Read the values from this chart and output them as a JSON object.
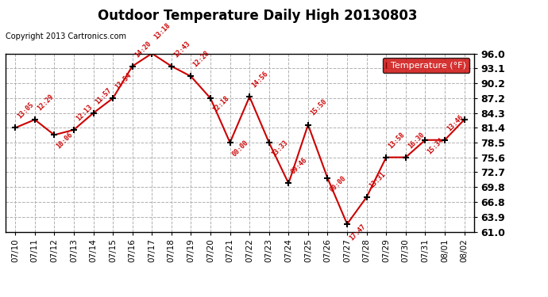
{
  "title": "Outdoor Temperature Daily High 20130803",
  "copyright": "Copyright 2013 Cartronics.com",
  "legend_label": "Temperature (°F)",
  "dates": [
    "07/10",
    "07/11",
    "07/12",
    "07/13",
    "07/14",
    "07/15",
    "07/16",
    "07/17",
    "07/18",
    "07/19",
    "07/20",
    "07/21",
    "07/22",
    "07/23",
    "07/24",
    "07/25",
    "07/26",
    "07/27",
    "07/28",
    "07/29",
    "07/30",
    "07/31",
    "08/01",
    "08/02"
  ],
  "temps": [
    81.4,
    83.0,
    80.0,
    81.0,
    84.3,
    87.2,
    93.5,
    96.0,
    93.5,
    91.5,
    87.2,
    78.5,
    87.5,
    78.5,
    70.5,
    82.0,
    71.5,
    62.5,
    67.8,
    75.6,
    75.6,
    79.0,
    79.0,
    83.0
  ],
  "time_labels": [
    "13:05",
    "12:29",
    "10:06",
    "12:13",
    "11:57",
    "13:54",
    "14:20",
    "13:18",
    "12:43",
    "12:28",
    "12:18",
    "00:00",
    "14:56",
    "13:33",
    "09:46",
    "15:50",
    "00:00",
    "17:47",
    "13:31",
    "13:58",
    "16:30",
    "15:34",
    "13:46",
    ""
  ],
  "ylim_min": 61.0,
  "ylim_max": 96.0,
  "ytick_vals": [
    61.0,
    63.9,
    66.8,
    69.8,
    72.7,
    75.6,
    78.5,
    81.4,
    84.3,
    87.2,
    90.2,
    93.1,
    96.0
  ],
  "ytick_labels": [
    "61.0",
    "63.9",
    "66.8",
    "69.8",
    "72.7",
    "75.6",
    "78.5",
    "81.4",
    "84.3",
    "87.2",
    "90.2",
    "93.1",
    "96.0"
  ],
  "line_color": "#cc0000",
  "marker_color": "#000000",
  "bg_color": "#ffffff",
  "grid_color": "#b0b0b0",
  "title_color": "#000000",
  "copyright_color": "#000000",
  "label_color": "#cc0000",
  "legend_bg": "#cc0000",
  "legend_text_color": "#ffffff",
  "label_offsets": [
    1.5,
    1.5,
    -3.0,
    1.5,
    1.5,
    1.5,
    1.5,
    2.5,
    1.5,
    1.5,
    -3.0,
    -3.0,
    1.5,
    -3.0,
    1.5,
    1.5,
    -3.0,
    -3.5,
    1.5,
    1.5,
    1.5,
    -3.0,
    1.5,
    0
  ]
}
